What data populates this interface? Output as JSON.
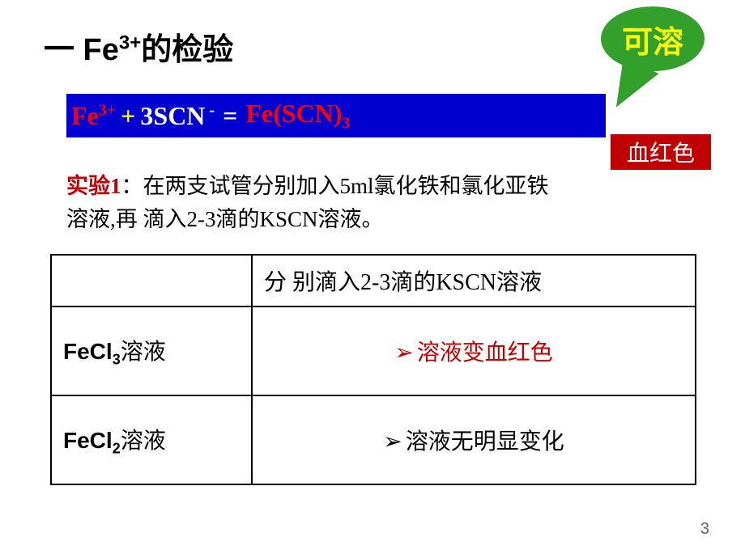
{
  "title": {
    "prefix": "一 Fe",
    "sup": "3+",
    "suffix": "的检验"
  },
  "bubble": {
    "text": "可溶",
    "bg_color": "#33a02c",
    "text_color": "#ffff00"
  },
  "equation": {
    "fe": "Fe",
    "fe_sup": "3+",
    "plus": " + ",
    "scn_coeff": "3SCN",
    "scn_sup": " -",
    "eq": " =",
    "prod": "  Fe(SCN)",
    "prod_sub": "3",
    "bg_color": "#0000d0"
  },
  "red_label": {
    "text": "血红色",
    "bg_color": "#c00000"
  },
  "experiment": {
    "label": "实验1",
    "colon": "：",
    "body": "在两支试管分别加入5ml氯化铁和氯化亚铁溶液,再 滴入2-3滴的KSCN溶液。"
  },
  "table": {
    "header_right": "分 别滴入2-3滴的KSCN溶液",
    "row1": {
      "compound_prefix": "FeCl",
      "compound_sub": "3",
      "compound_suffix": "溶液",
      "result": "溶液变血红色",
      "result_color": "#c00000"
    },
    "row2": {
      "compound_prefix": "FeCl",
      "compound_sub": "2",
      "compound_suffix": "溶液",
      "result": "溶液无明显变化",
      "result_color": "#000000"
    },
    "bullet": "➢"
  },
  "page_number": "3"
}
